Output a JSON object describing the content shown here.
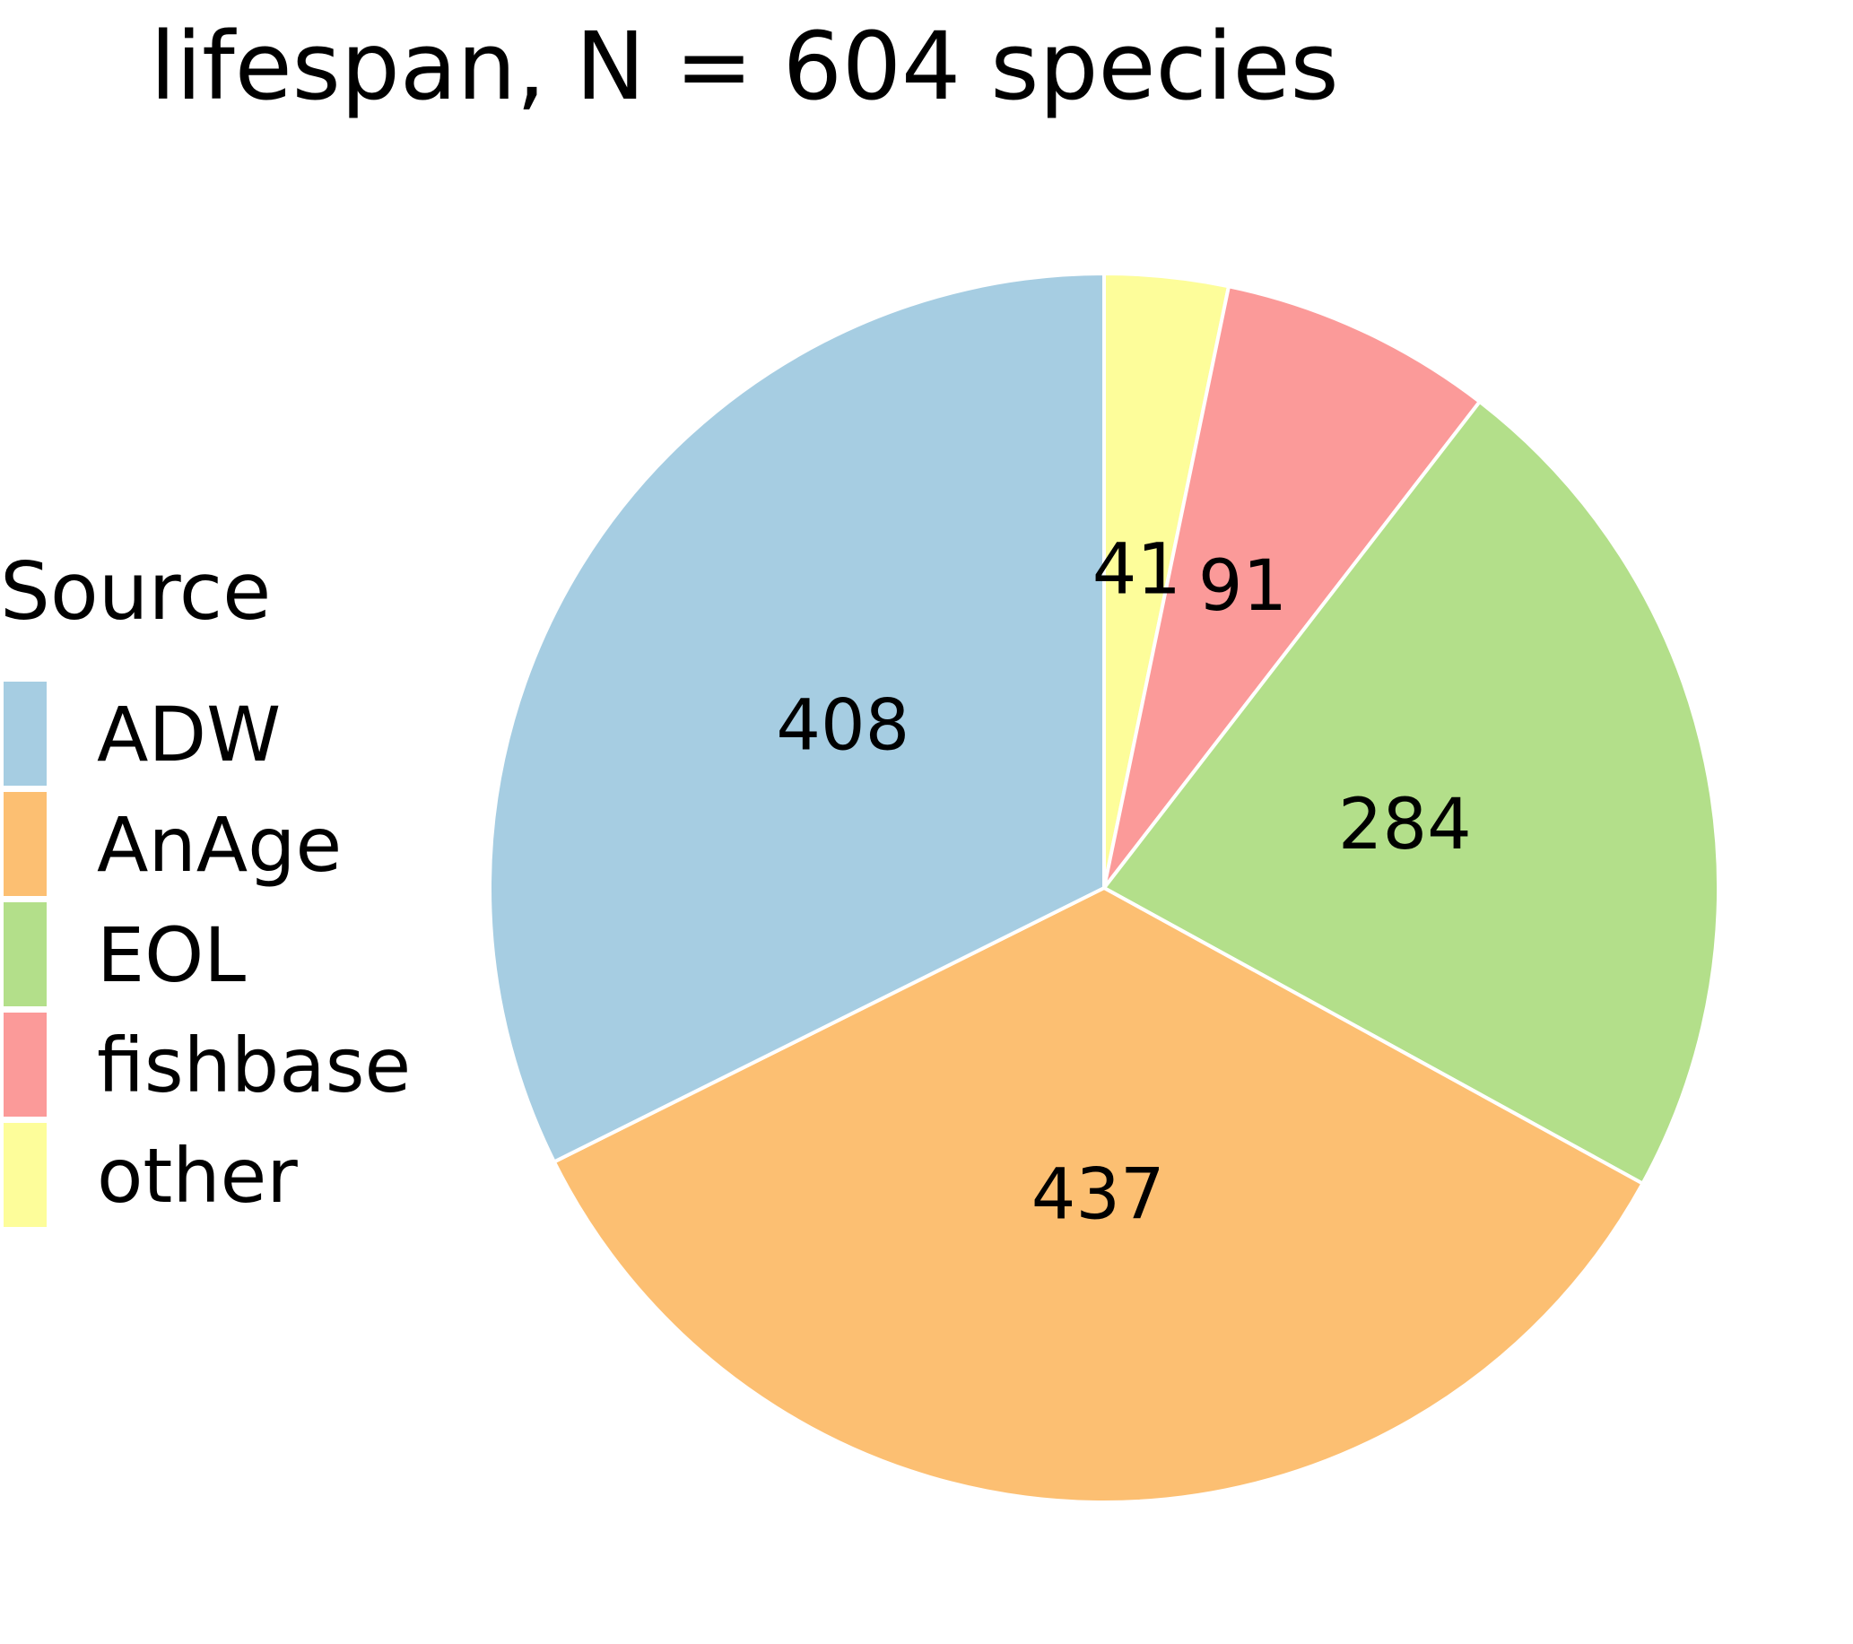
{
  "chart_data": {
    "type": "pie",
    "title": "lifespan, N = 604 species",
    "legend": {
      "title": "Source",
      "placement": "left"
    },
    "slices": [
      {
        "name": "other",
        "value": 41,
        "color": "#fdfd9a"
      },
      {
        "name": "fishbase",
        "value": 91,
        "color": "#fb9a99"
      },
      {
        "name": "EOL",
        "value": 284,
        "color": "#b3df8a"
      },
      {
        "name": "AnAge",
        "value": 437,
        "color": "#fcbf72"
      },
      {
        "name": "ADW",
        "value": 408,
        "color": "#a6cde2"
      }
    ],
    "legend_order": [
      "ADW",
      "AnAge",
      "EOL",
      "fishbase",
      "other"
    ],
    "start_angle": "12 o'clock",
    "direction": "clockwise"
  }
}
